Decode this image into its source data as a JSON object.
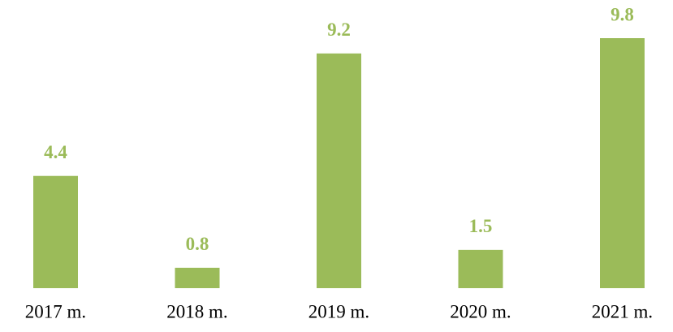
{
  "chart_data": {
    "type": "bar",
    "categories": [
      "2017 m.",
      "2018 m.",
      "2019 m.",
      "2020 m.",
      "2021 m."
    ],
    "values": [
      4.4,
      0.8,
      9.2,
      1.5,
      9.8
    ],
    "color": "#9bbb59"
  }
}
